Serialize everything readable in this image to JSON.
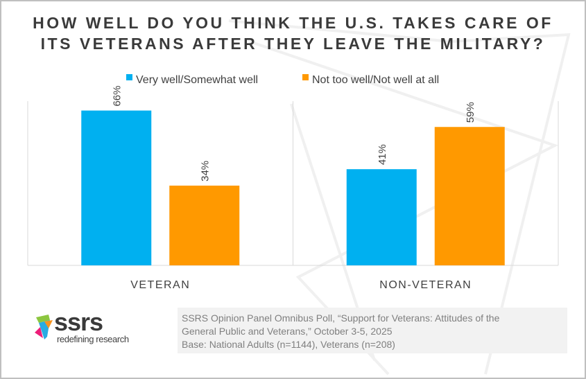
{
  "chart_data": {
    "type": "bar",
    "title": "HOW WELL DO YOU THINK THE U.S. TAKES CARE OF ITS VETERANS AFTER THEY LEAVE THE MILITARY?",
    "title_lines": [
      "HOW WELL DO YOU THINK THE U.S. TAKES CARE OF",
      "ITS VETERANS AFTER THEY LEAVE THE MILITARY?"
    ],
    "categories": [
      "VETERAN",
      "NON-VETERAN"
    ],
    "series": [
      {
        "name": "Very well/Somewhat well",
        "values": [
          66,
          41
        ],
        "labels": [
          "66%",
          "41%"
        ],
        "color": "#00b0f0"
      },
      {
        "name": "Not too well/Not well at all",
        "values": [
          34,
          59
        ],
        "labels": [
          "34%",
          "59%"
        ],
        "color": "#ff9900"
      }
    ],
    "ylim": [
      0,
      70
    ],
    "grid": false,
    "legend": "top",
    "xlabel": "",
    "ylabel": ""
  },
  "source_note": [
    "SSRS Opinion Panel Omnibus Poll, “Support for Veterans: Attitudes of the",
    "General Public and Veterans,” October 3-5, 2025",
    "Base: National Adults (n=1144), Veterans (n=208)"
  ],
  "logo": {
    "word": "ssrs",
    "tagline": "redefining research"
  }
}
